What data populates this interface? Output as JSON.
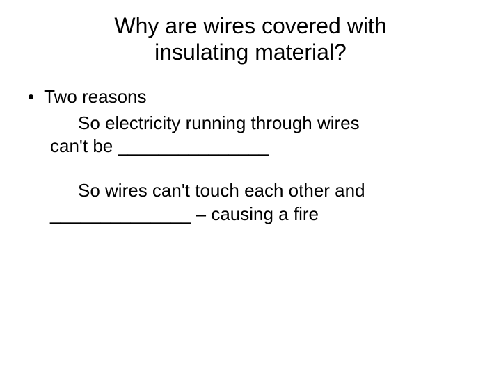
{
  "slide": {
    "title_line1": "Why are wires covered with",
    "title_line2": "insulating material?",
    "bullet_text": "Two reasons",
    "para1_line1": "So electricity running through wires",
    "para1_line2": "can't be _______________",
    "para2_line1": "So wires can't touch each other and",
    "para2_line2": "______________ – causing a fire",
    "colors": {
      "background": "#ffffff",
      "text": "#000000"
    },
    "fonts": {
      "title_size": 32,
      "body_size": 26,
      "family": "Arial"
    }
  }
}
